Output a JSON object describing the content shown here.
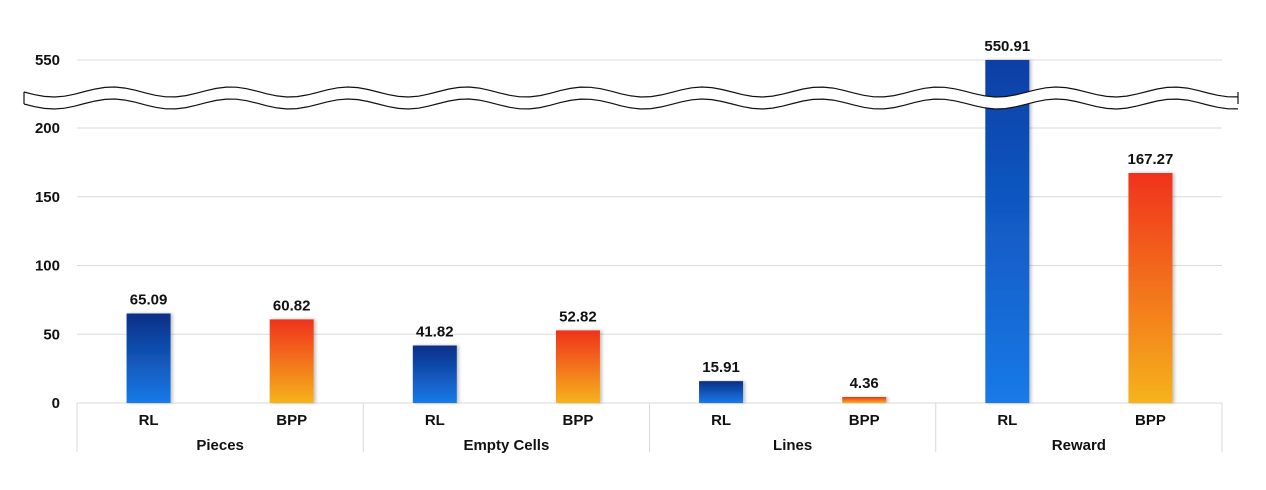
{
  "chart_data": {
    "type": "bar",
    "groups": [
      "Pieces",
      "Empty Cells",
      "Lines",
      "Reward"
    ],
    "series_labels": [
      "RL",
      "BPP"
    ],
    "values": [
      {
        "group": "Pieces",
        "RL": 65.09,
        "BPP": 60.82
      },
      {
        "group": "Empty Cells",
        "RL": 41.82,
        "BPP": 52.82
      },
      {
        "group": "Lines",
        "RL": 15.91,
        "BPP": 4.36
      },
      {
        "group": "Reward",
        "RL": 550.91,
        "BPP": 167.27
      }
    ],
    "value_labels": {
      "Pieces": [
        "65.09",
        "60.82"
      ],
      "Empty Cells": [
        "41.82",
        "52.82"
      ],
      "Lines": [
        "15.91",
        "4.36"
      ],
      "Reward": [
        "550.91",
        "167.27"
      ]
    },
    "yticks": [
      "0",
      "50",
      "100",
      "150",
      "200",
      "550"
    ],
    "ytick_values": [
      0,
      50,
      100,
      150,
      200,
      550
    ],
    "ylim": [
      0,
      550
    ],
    "axis_break": [
      200,
      550
    ],
    "grid": true,
    "legend": "none",
    "colors": {
      "RL_top": "#0a2f87",
      "RL_bottom": "#1a7ae8",
      "BPP_top": "#f0321a",
      "BPP_bottom": "#f6b31f",
      "reward_rl_top": "#0a3fa6",
      "reward_rl_bottom": "#1a7ae8"
    }
  }
}
